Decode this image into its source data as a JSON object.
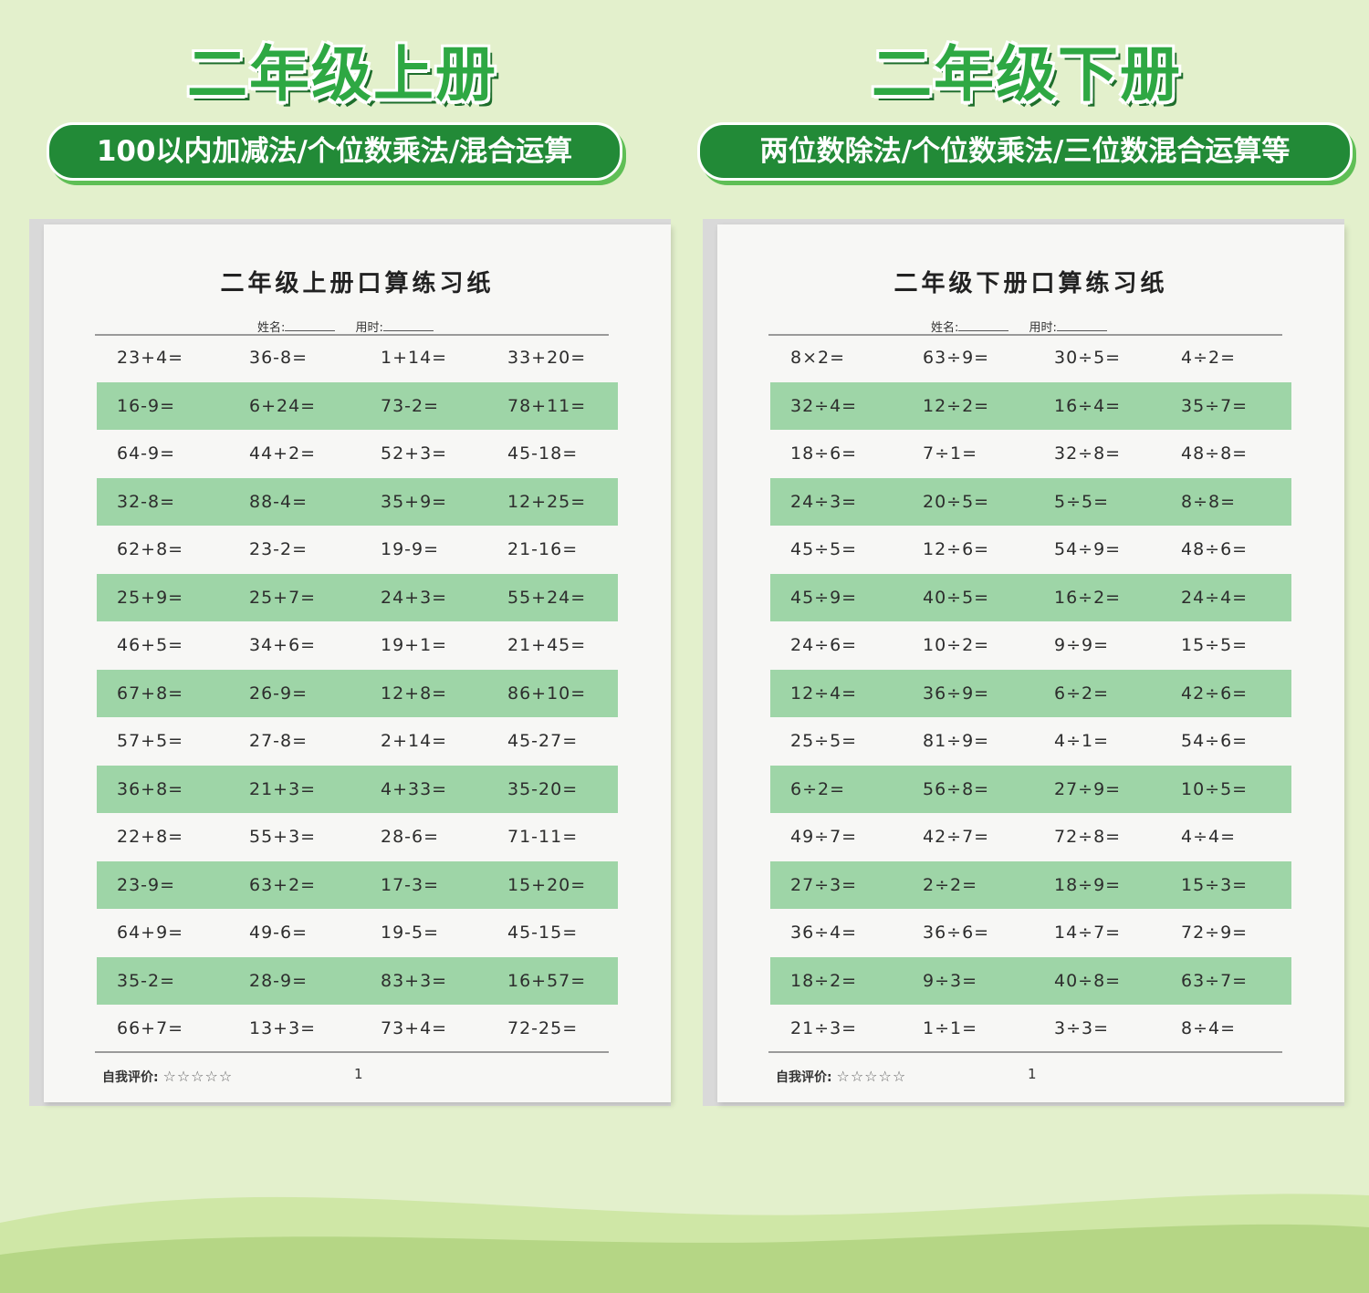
{
  "colors": {
    "accent": "#228a37",
    "title": "#2ea843",
    "row_shade": "#9ed5a7",
    "background": "#e3f0cc"
  },
  "panels": [
    {
      "heading": "二年级上册",
      "subtitle": "100以内加减法/个位数乘法/混合运算",
      "sheet": {
        "title": "二年级上册口算练习纸",
        "name_label": "姓名:",
        "time_label": "用时:",
        "rows": [
          [
            "23+4=",
            "36-8=",
            "1+14=",
            "33+20="
          ],
          [
            "16-9=",
            "6+24=",
            "73-2=",
            "78+11="
          ],
          [
            "64-9=",
            "44+2=",
            "52+3=",
            "45-18="
          ],
          [
            "32-8=",
            "88-4=",
            "35+9=",
            "12+25="
          ],
          [
            "62+8=",
            "23-2=",
            "19-9=",
            "21-16="
          ],
          [
            "25+9=",
            "25+7=",
            "24+3=",
            "55+24="
          ],
          [
            "46+5=",
            "34+6=",
            "19+1=",
            "21+45="
          ],
          [
            "67+8=",
            "26-9=",
            "12+8=",
            "86+10="
          ],
          [
            "57+5=",
            "27-8=",
            "2+14=",
            "45-27="
          ],
          [
            "36+8=",
            "21+3=",
            "4+33=",
            "35-20="
          ],
          [
            "22+8=",
            "55+3=",
            "28-6=",
            "71-11="
          ],
          [
            "23-9=",
            "63+2=",
            "17-3=",
            "15+20="
          ],
          [
            "64+9=",
            "49-6=",
            "19-5=",
            "45-15="
          ],
          [
            "35-2=",
            "28-9=",
            "83+3=",
            "16+57="
          ],
          [
            "66+7=",
            "13+3=",
            "73+4=",
            "72-25="
          ]
        ],
        "self_eval_label": "自我评价:",
        "stars": "☆☆☆☆☆",
        "page_number": "1"
      }
    },
    {
      "heading": "二年级下册",
      "subtitle": "两位数除法/个位数乘法/三位数混合运算等",
      "sheet": {
        "title": "二年级下册口算练习纸",
        "name_label": "姓名:",
        "time_label": "用时:",
        "rows": [
          [
            "8×2=",
            "63÷9=",
            "30÷5=",
            "4÷2="
          ],
          [
            "32÷4=",
            "12÷2=",
            "16÷4=",
            "35÷7="
          ],
          [
            "18÷6=",
            "7÷1=",
            "32÷8=",
            "48÷8="
          ],
          [
            "24÷3=",
            "20÷5=",
            "5÷5=",
            "8÷8="
          ],
          [
            "45÷5=",
            "12÷6=",
            "54÷9=",
            "48÷6="
          ],
          [
            "45÷9=",
            "40÷5=",
            "16÷2=",
            "24÷4="
          ],
          [
            "24÷6=",
            "10÷2=",
            "9÷9=",
            "15÷5="
          ],
          [
            "12÷4=",
            "36÷9=",
            "6÷2=",
            "42÷6="
          ],
          [
            "25÷5=",
            "81÷9=",
            "4÷1=",
            "54÷6="
          ],
          [
            "6÷2=",
            "56÷8=",
            "27÷9=",
            "10÷5="
          ],
          [
            "49÷7=",
            "42÷7=",
            "72÷8=",
            "4÷4="
          ],
          [
            "27÷3=",
            "2÷2=",
            "18÷9=",
            "15÷3="
          ],
          [
            "36÷4=",
            "36÷6=",
            "14÷7=",
            "72÷9="
          ],
          [
            "18÷2=",
            "9÷3=",
            "40÷8=",
            "63÷7="
          ],
          [
            "21÷3=",
            "1÷1=",
            "3÷3=",
            "8÷4="
          ]
        ],
        "self_eval_label": "自我评价:",
        "stars": "☆☆☆☆☆",
        "page_number": "1"
      }
    }
  ]
}
